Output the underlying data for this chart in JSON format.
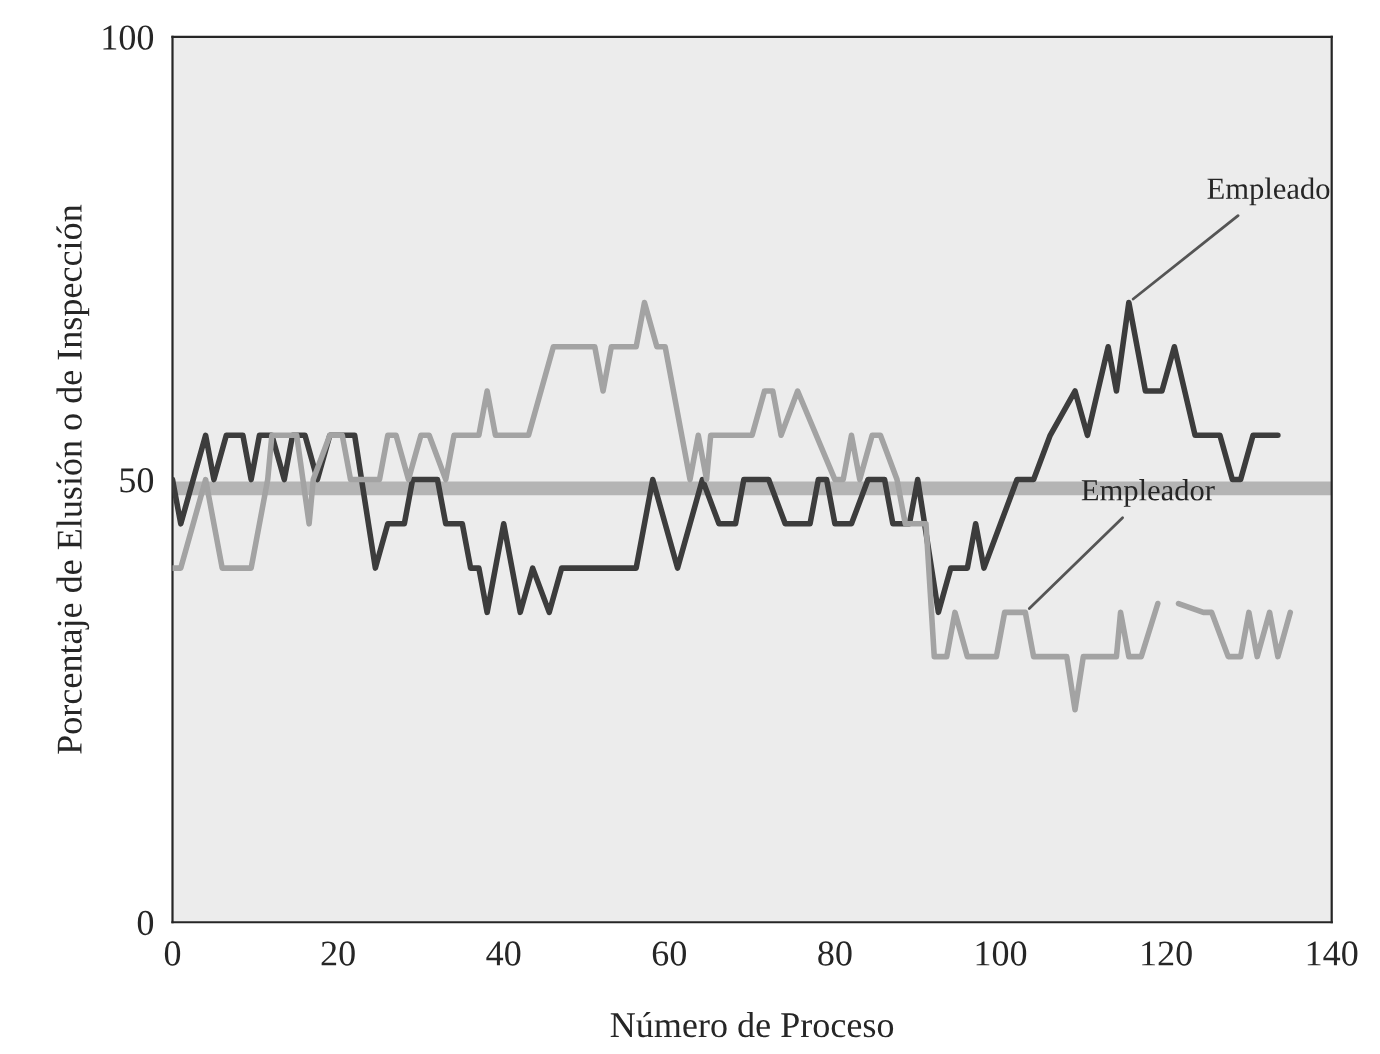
{
  "chart_data": {
    "type": "line",
    "xlabel": "Número de Proceso",
    "ylabel": "Porcentaje de Elusión o de Inspección",
    "xlim": [
      0,
      140
    ],
    "ylim": [
      0,
      100
    ],
    "xticks": [
      0,
      20,
      40,
      60,
      80,
      100,
      120,
      140
    ],
    "yticks": [
      0,
      50,
      100
    ],
    "grid": false,
    "marker": "none",
    "line_style": "solid",
    "series": [
      {
        "color": "#3c3c3c",
        "x": [
          0,
          1,
          2.5,
          4,
          5,
          6.5,
          8.5,
          9.5,
          10.5,
          12,
          13.5,
          14.5,
          16,
          17.5,
          19,
          22,
          24.5,
          26,
          28,
          29,
          32,
          33,
          35,
          36,
          37,
          38,
          40,
          42,
          43.5,
          45.5,
          47,
          48,
          56,
          58,
          61,
          64,
          66,
          68,
          69,
          72,
          74,
          77,
          78,
          79,
          80,
          82,
          84,
          86,
          87,
          89,
          90,
          92.5,
          94,
          96,
          97,
          98,
          100,
          102,
          104,
          106,
          109,
          110.5,
          113,
          114,
          115.5,
          117.5,
          119.5,
          121,
          123.5,
          126.5,
          128,
          129,
          130.5,
          133.5
        ],
        "values": [
          50,
          45,
          50,
          55,
          50,
          55,
          55,
          50,
          55,
          55,
          50,
          55,
          55,
          50,
          55,
          55,
          40,
          45,
          45,
          50,
          50,
          45,
          45,
          40,
          40,
          35,
          45,
          35,
          40,
          35,
          40,
          40,
          40,
          50,
          40,
          50,
          45,
          45,
          50,
          50,
          45,
          45,
          50,
          50,
          45,
          45,
          50,
          50,
          45,
          45,
          50,
          35,
          40,
          40,
          45,
          40,
          45,
          50,
          50,
          55,
          60,
          55,
          65,
          60,
          70,
          60,
          60,
          65,
          55,
          55,
          50,
          50,
          55,
          55
        ]
      },
      {
        "color": "#a3a3a3",
        "x": [
          0,
          1,
          4,
          6,
          9.5,
          11.5,
          12,
          15,
          16.5,
          17,
          19,
          20.5,
          21.5,
          25,
          26,
          27,
          28.5,
          30,
          31,
          33,
          34,
          37,
          38,
          39,
          43,
          46,
          51,
          52,
          53,
          56,
          57,
          58.5,
          59.5,
          62.5,
          63.5,
          64.5,
          65,
          70,
          71.5,
          72.5,
          73.5,
          75.5,
          80,
          81,
          82,
          83,
          84.5,
          85.5,
          87.5,
          88.5,
          91,
          92,
          93.5,
          94.5,
          96,
          99.5,
          100.5,
          103,
          104,
          108,
          109,
          110,
          114,
          114.5,
          115.5,
          117,
          119,
          120,
          121.5,
          124.5,
          125.5,
          127.5,
          129,
          130,
          131,
          132.5,
          133.5,
          135
        ],
        "values": [
          40,
          40,
          50,
          40,
          40,
          50,
          55,
          55,
          45,
          50,
          55,
          55,
          50,
          50,
          55,
          55,
          50,
          55,
          55,
          50,
          55,
          55,
          60,
          55,
          55,
          65,
          65,
          60,
          65,
          65,
          70,
          65,
          65,
          50,
          55,
          50,
          55,
          55,
          60,
          60,
          55,
          60,
          50,
          50,
          55,
          50,
          55,
          55,
          50,
          45,
          45,
          30,
          30,
          35,
          30,
          30,
          35,
          35,
          30,
          30,
          24,
          30,
          30,
          35,
          30,
          30,
          36,
          null,
          36,
          35,
          35,
          30,
          30,
          35,
          30,
          35,
          30,
          35
        ]
      }
    ],
    "ref_lines": [
      {
        "axis": "y",
        "value": 49,
        "color": "#b4b4b4"
      }
    ],
    "annotations": [
      {
        "text": "Empleado",
        "x": 115.5,
        "y": 70
      },
      {
        "text": "Empleador",
        "x": 103,
        "y": 35
      }
    ]
  }
}
